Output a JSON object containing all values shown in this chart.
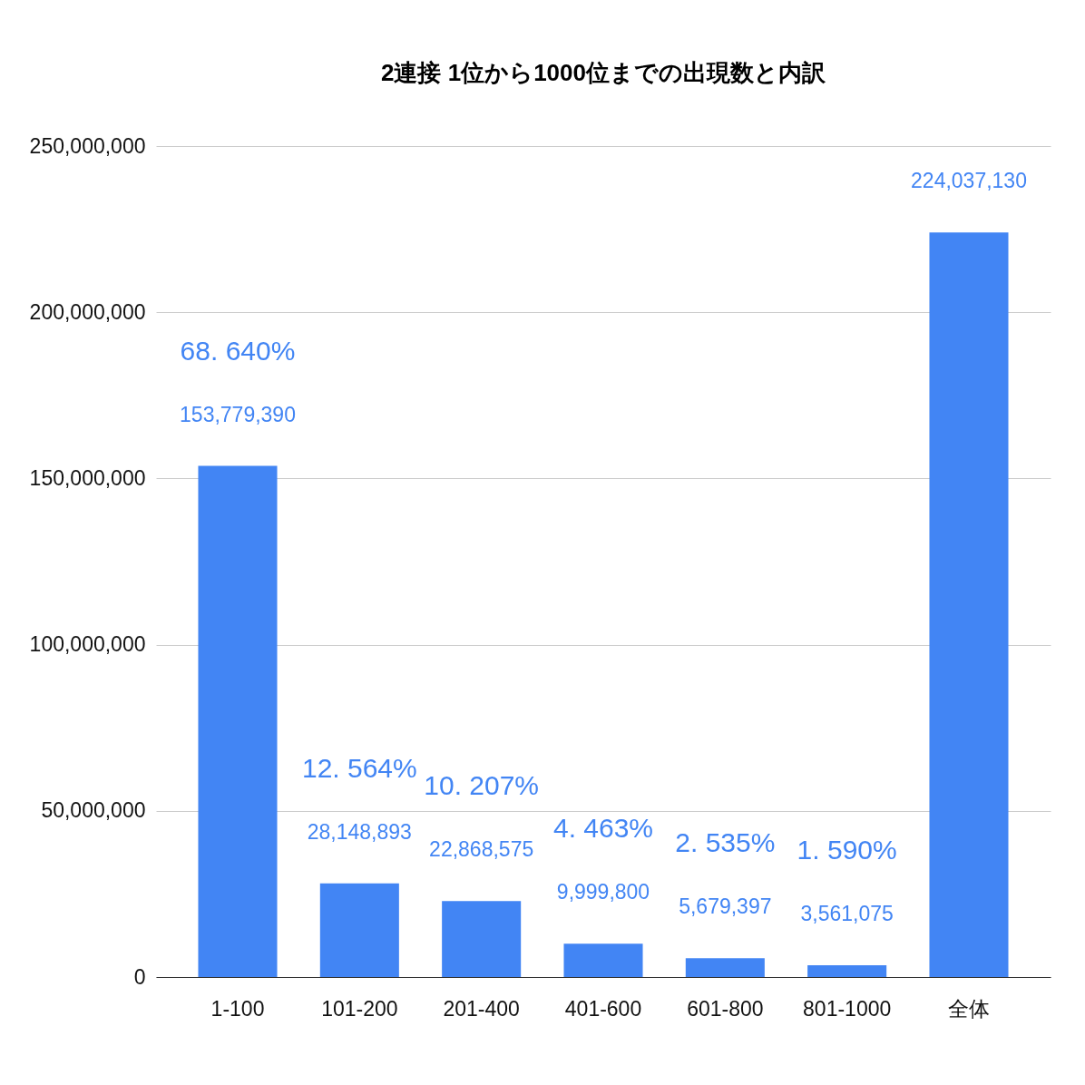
{
  "chart_data": {
    "type": "bar",
    "title": "2連接 1位から1000位までの出現数と内訳",
    "categories": [
      "1-100",
      "101-200",
      "201-400",
      "401-600",
      "601-800",
      "801-1000",
      "全体"
    ],
    "values": [
      153779390,
      28148893,
      22868575,
      9999800,
      5679397,
      3561075,
      224037130
    ],
    "value_labels": [
      "153,779,390",
      "28,148,893",
      "22,868,575",
      "9,999,800",
      "5,679,397",
      "3,561,075",
      "224,037,130"
    ],
    "color": "#4285f4",
    "ylim": [
      0,
      250000000
    ],
    "yticks": [
      {
        "value": 0,
        "label": "0"
      },
      {
        "value": 50000000,
        "label": "50,000,000"
      },
      {
        "value": 100000000,
        "label": "100,000,000"
      },
      {
        "value": 150000000,
        "label": "150,000,000"
      },
      {
        "value": 200000000,
        "label": "200,000,000"
      },
      {
        "value": 250000000,
        "label": "250,000,000"
      }
    ],
    "grid": "y",
    "annotations": [
      "68. 640%",
      "12. 564%",
      "10. 207%",
      "4. 463%",
      "2. 535%",
      "1. 590%"
    ]
  }
}
